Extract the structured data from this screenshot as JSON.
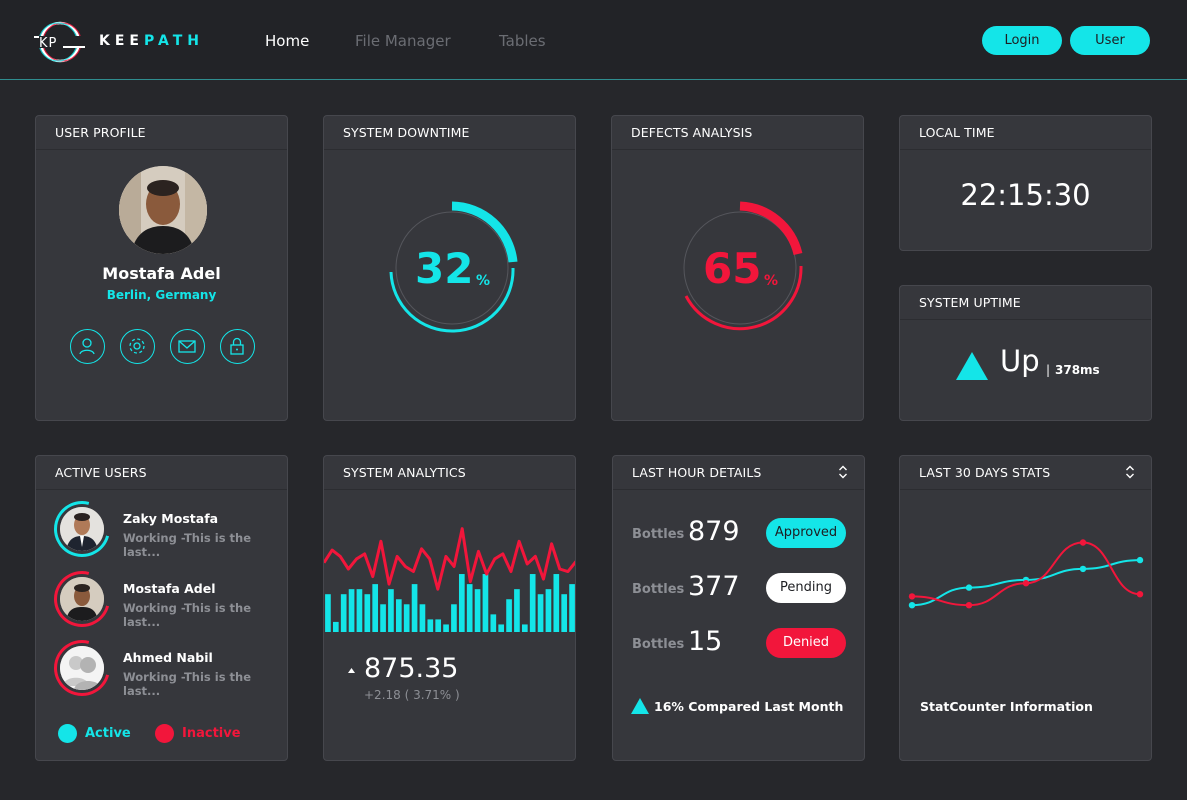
{
  "header": {
    "brand_part1": "KEE",
    "brand_part2": "PATH",
    "nav": [
      "Home",
      "File Manager",
      "Tables"
    ],
    "login_label": "Login",
    "user_label": "User"
  },
  "colors": {
    "accent": "#14e5e8",
    "danger": "#f2163b",
    "background": "#26272b",
    "card": "#36373c"
  },
  "user_profile": {
    "title": "USER PROFILE",
    "name": "Mostafa Adel",
    "location": "Berlin, Germany",
    "icons": [
      "user-icon",
      "gear-icon",
      "mail-icon",
      "lock-icon"
    ]
  },
  "system_downtime": {
    "title": "SYSTEM DOWNTIME",
    "value": "32",
    "percent": 32,
    "unit": "%"
  },
  "defects_analysis": {
    "title": "DEFECTS ANALYSIS",
    "value": "65",
    "percent": 65,
    "unit": "%"
  },
  "local_time": {
    "title": "LOCAL TIME",
    "time": "22:15:30"
  },
  "system_uptime": {
    "title": "SYSTEM UPTIME",
    "status": "Up",
    "separator": "|",
    "latency": "378ms"
  },
  "active_users": {
    "title": "ACTIVE USERS",
    "users": [
      {
        "name": "Zaky Mostafa",
        "status_text": "Working -This is the last...",
        "state": "active"
      },
      {
        "name": "Mostafa Adel",
        "status_text": "Working -This is the last...",
        "state": "inactive"
      },
      {
        "name": "Ahmed Nabil",
        "status_text": "Working -This is the last...",
        "state": "inactive"
      }
    ],
    "legend_active": "Active",
    "legend_inactive": "Inactive"
  },
  "system_analytics": {
    "title": "SYSTEM ANALYTICS",
    "value": "875.35",
    "change": "+2.18 ( 3.71% )",
    "trend": "up"
  },
  "last_hour_details": {
    "title": "LAST HOUR DETAILS",
    "rows": [
      {
        "label": "Bottles",
        "value": "879",
        "badge": "Approved"
      },
      {
        "label": "Bottles",
        "value": "377",
        "badge": "Pending"
      },
      {
        "label": "Bottles",
        "value": "15",
        "badge": "Denied"
      }
    ],
    "footer": "16% Compared Last Month"
  },
  "last_30_days": {
    "title": "LAST 30 DAYS STATS",
    "footer": "StatCounter Information"
  },
  "chart_data": [
    {
      "type": "bar",
      "series": [
        {
          "values": [
            30,
            8,
            30,
            34,
            34,
            30,
            38,
            22,
            34,
            26,
            22,
            38,
            22,
            10,
            10,
            6,
            22,
            46,
            38,
            34,
            46,
            14,
            6,
            26,
            34,
            6,
            46,
            30,
            34,
            46,
            30,
            38
          ]
        },
        {
          "values": [
            55,
            65,
            60,
            50,
            58,
            62,
            44,
            72,
            38,
            60,
            52,
            48,
            66,
            58,
            34,
            60,
            52,
            82,
            40,
            64,
            46,
            58,
            62,
            48,
            72,
            54,
            60,
            42,
            70,
            50,
            48,
            56
          ]
        }
      ]
    },
    {
      "type": "line",
      "x": [
        1,
        2,
        3,
        4,
        5
      ],
      "series": [
        {
          "values": [
            28,
            44,
            51,
            61,
            69
          ],
          "color": "#14e5e8"
        },
        {
          "values": [
            36,
            28,
            48,
            85,
            38
          ],
          "color": "#f2163b"
        }
      ]
    }
  ]
}
